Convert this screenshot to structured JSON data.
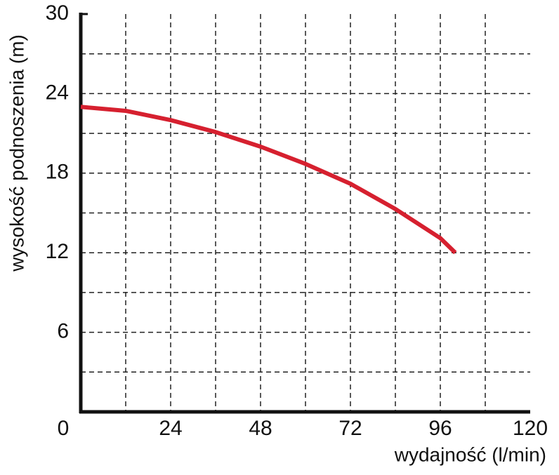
{
  "chart_data": {
    "type": "line",
    "x_label": "wydajność (l/min)",
    "y_label": "wysokość podnoszenia (m)",
    "x": [
      0,
      12,
      24,
      36,
      48,
      60,
      72,
      84,
      96,
      100
    ],
    "series": [
      {
        "color": "#d6202f",
        "values": [
          23,
          22.7,
          22,
          21.1,
          20,
          18.7,
          17.2,
          15.3,
          13.1,
          12
        ]
      }
    ],
    "xlim": [
      0,
      120
    ],
    "xticks": [
      0,
      24,
      48,
      72,
      96,
      120
    ],
    "ylim": [
      0,
      30
    ],
    "yticks": [
      6,
      12,
      18,
      24,
      30
    ],
    "x_minor_ticks": [
      12,
      36,
      60,
      84,
      108
    ],
    "y_minor_ticks": [
      3,
      9,
      15,
      21,
      27
    ],
    "grid": true
  }
}
